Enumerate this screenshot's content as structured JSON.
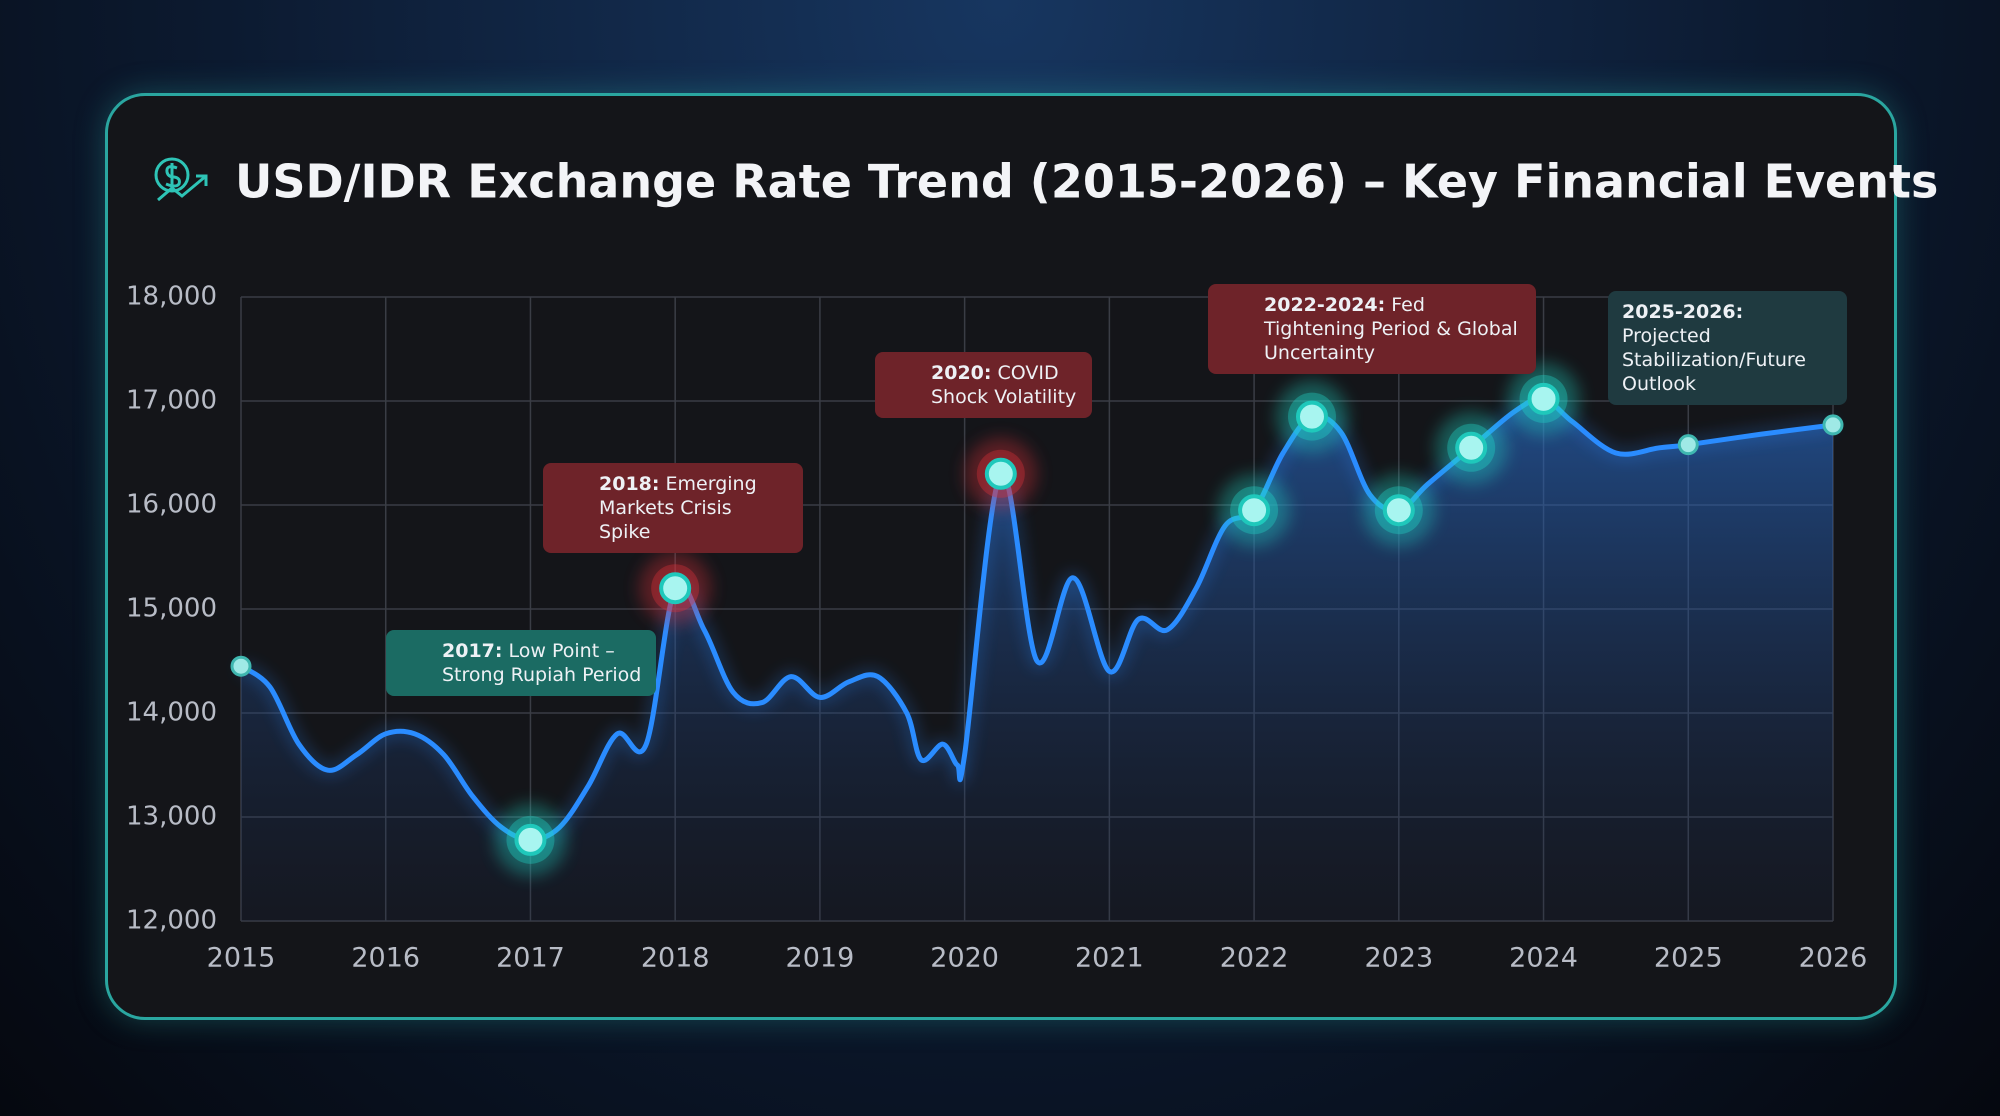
{
  "chart_data": {
    "type": "line",
    "title": "USD/IDR Exchange Rate Trend (2015-2026) – Key Financial Events",
    "x": [
      2015,
      2015.2,
      2015.4,
      2015.6,
      2015.8,
      2016,
      2016.2,
      2016.4,
      2016.6,
      2016.8,
      2017,
      2017.2,
      2017.4,
      2017.6,
      2017.8,
      2018,
      2018.2,
      2018.4,
      2018.6,
      2018.8,
      2019,
      2019.2,
      2019.4,
      2019.6,
      2019.7,
      2019.85,
      2019.95,
      2020,
      2020.25,
      2020.5,
      2020.75,
      2021,
      2021.2,
      2021.4,
      2021.6,
      2021.8,
      2022,
      2022.2,
      2022.4,
      2022.6,
      2022.8,
      2023,
      2023.2,
      2023.5,
      2023.8,
      2024,
      2024.2,
      2024.5,
      2024.8,
      2025,
      2025.5,
      2026
    ],
    "series": [
      {
        "color": "#2a8cff",
        "values": [
          14450,
          14250,
          13700,
          13450,
          13600,
          13800,
          13800,
          13600,
          13200,
          12900,
          12780,
          12900,
          13300,
          13800,
          13700,
          15200,
          14800,
          14200,
          14100,
          14350,
          14150,
          14300,
          14350,
          14000,
          13550,
          13700,
          13500,
          13600,
          16300,
          14500,
          15300,
          14400,
          14900,
          14800,
          15200,
          15800,
          15950,
          16500,
          16850,
          16700,
          16100,
          15950,
          16200,
          16550,
          16900,
          17020,
          16800,
          16500,
          16550,
          16580,
          16680,
          16770
        ]
      }
    ],
    "key_points": {
      "x": [
        2017,
        2018,
        2020.25,
        2022,
        2022.4,
        2023,
        2023.5,
        2024
      ],
      "y": [
        12780,
        15200,
        16300,
        15950,
        16850,
        15950,
        16550,
        17020
      ],
      "glow": [
        "#22d8c8",
        "#e0303a",
        "#e0303a",
        "#22d8c8",
        "#22d8c8",
        "#22d8c8",
        "#22d8c8",
        "#22d8c8"
      ]
    },
    "end_points": {
      "x": [
        2015,
        2025,
        2026
      ],
      "y": [
        14450,
        16580,
        16770
      ]
    },
    "xlim": [
      2015,
      2026
    ],
    "ylim": [
      12000,
      18000
    ],
    "xticks": [
      2015,
      2016,
      2017,
      2018,
      2019,
      2020,
      2021,
      2022,
      2023,
      2024,
      2025,
      2026
    ],
    "yticks": [
      {
        "value": 12000,
        "label": "12,000"
      },
      {
        "value": 13000,
        "label": "13,000"
      },
      {
        "value": 14000,
        "label": "14,000"
      },
      {
        "value": 15000,
        "label": "15,000"
      },
      {
        "value": 16000,
        "label": "16,000"
      },
      {
        "value": 17000,
        "label": "17,000"
      },
      {
        "value": 18000,
        "label": "18,000"
      }
    ],
    "grid": true,
    "annotations": [
      {
        "lead": "2017:",
        "text": "Low Point – Strong Rupiah Period",
        "color": "#1b6b63"
      },
      {
        "lead": "2018:",
        "text": "Emerging Markets Crisis Spike",
        "color": "#6e2329"
      },
      {
        "lead": "2020:",
        "text": "COVID Shock Volatility",
        "color": "#6e2329"
      },
      {
        "lead": "2022-2024:",
        "text": "Fed Tightening Period & Global Uncertainty",
        "color": "#6e2329"
      },
      {
        "lead": "2025-2026:",
        "text": "Projected Stabilization/Future Outlook",
        "color": "#1f3a40"
      }
    ]
  }
}
